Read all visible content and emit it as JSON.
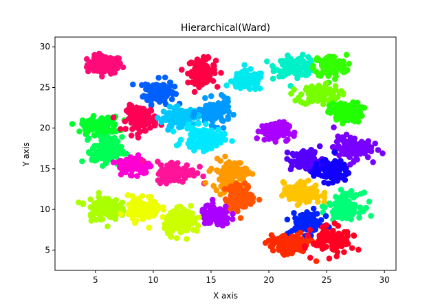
{
  "chart_data": {
    "type": "scatter",
    "title": "Hierarchical(Ward)",
    "xlabel": "X axis",
    "ylabel": "Y axis",
    "xlim": [
      1.5,
      31.0
    ],
    "ylim": [
      2.5,
      31.2
    ],
    "xticks": [
      5,
      10,
      15,
      20,
      25,
      30
    ],
    "yticks": [
      5,
      10,
      15,
      20,
      25,
      30
    ],
    "grid": false,
    "legend": "none",
    "clusters": [
      {
        "center": [
          5.8,
          27.8
        ],
        "spread": [
          0.75,
          0.55
        ],
        "color": "#ff0a79"
      },
      {
        "center": [
          10.5,
          24.5
        ],
        "spread": [
          0.65,
          0.75
        ],
        "color": "#0060ff"
      },
      {
        "center": [
          14.2,
          27.0
        ],
        "spread": [
          0.6,
          0.75
        ],
        "color": "#ff0044"
      },
      {
        "center": [
          18.2,
          25.8
        ],
        "spread": [
          0.7,
          0.6
        ],
        "color": "#00e8f0"
      },
      {
        "center": [
          22.4,
          27.6
        ],
        "spread": [
          0.9,
          0.6
        ],
        "color": "#00f0c8"
      },
      {
        "center": [
          25.3,
          27.6
        ],
        "spread": [
          0.7,
          0.7
        ],
        "color": "#33ff00"
      },
      {
        "center": [
          24.4,
          24.1
        ],
        "spread": [
          0.85,
          0.6
        ],
        "color": "#77ff00"
      },
      {
        "center": [
          26.7,
          21.9
        ],
        "spread": [
          0.7,
          0.6
        ],
        "color": "#22ff00"
      },
      {
        "center": [
          5.4,
          20.3
        ],
        "spread": [
          0.8,
          0.55
        ],
        "color": "#00ff2a"
      },
      {
        "center": [
          9.0,
          21.2
        ],
        "spread": [
          0.65,
          0.75
        ],
        "color": "#ff0055"
      },
      {
        "center": [
          12.3,
          21.4
        ],
        "spread": [
          0.8,
          0.55
        ],
        "color": "#00c8ff"
      },
      {
        "center": [
          15.3,
          21.9
        ],
        "spread": [
          0.7,
          0.75
        ],
        "color": "#0099ff"
      },
      {
        "center": [
          14.3,
          18.7
        ],
        "spread": [
          0.85,
          0.7
        ],
        "color": "#00e8ff"
      },
      {
        "center": [
          20.5,
          19.6
        ],
        "spread": [
          0.6,
          0.55
        ],
        "color": "#aa00ff"
      },
      {
        "center": [
          6.0,
          17.2
        ],
        "spread": [
          0.65,
          0.85
        ],
        "color": "#00ff55"
      },
      {
        "center": [
          8.4,
          15.5
        ],
        "spread": [
          0.7,
          0.55
        ],
        "color": "#ff00d4"
      },
      {
        "center": [
          12.0,
          14.6
        ],
        "spread": [
          0.85,
          0.65
        ],
        "color": "#ff1499"
      },
      {
        "center": [
          16.6,
          14.4
        ],
        "spread": [
          0.75,
          0.85
        ],
        "color": "#ff9900"
      },
      {
        "center": [
          23.3,
          16.0
        ],
        "spread": [
          0.7,
          0.65
        ],
        "color": "#5500ff"
      },
      {
        "center": [
          27.2,
          17.6
        ],
        "spread": [
          0.8,
          0.7
        ],
        "color": "#7700ff"
      },
      {
        "center": [
          25.4,
          14.7
        ],
        "spread": [
          0.75,
          0.65
        ],
        "color": "#1100ff"
      },
      {
        "center": [
          22.9,
          12.0
        ],
        "spread": [
          0.8,
          0.65
        ],
        "color": "#ffc400"
      },
      {
        "center": [
          17.5,
          11.4
        ],
        "spread": [
          0.65,
          0.8
        ],
        "color": "#ff5500"
      },
      {
        "center": [
          5.6,
          10.2
        ],
        "spread": [
          0.7,
          0.75
        ],
        "color": "#aaff00"
      },
      {
        "center": [
          9.2,
          10.1
        ],
        "spread": [
          0.7,
          0.75
        ],
        "color": "#eeff00"
      },
      {
        "center": [
          12.6,
          8.4
        ],
        "spread": [
          0.8,
          0.75
        ],
        "color": "#ccff00"
      },
      {
        "center": [
          15.4,
          9.2
        ],
        "spread": [
          0.65,
          0.6
        ],
        "color": "#aa00ff"
      },
      {
        "center": [
          26.6,
          10.5
        ],
        "spread": [
          0.7,
          0.75
        ],
        "color": "#00ff77"
      },
      {
        "center": [
          23.3,
          8.3
        ],
        "spread": [
          0.7,
          0.65
        ],
        "color": "#0022ff"
      },
      {
        "center": [
          21.8,
          5.6
        ],
        "spread": [
          0.9,
          0.65
        ],
        "color": "#ff2a00"
      },
      {
        "center": [
          25.6,
          6.2
        ],
        "spread": [
          0.9,
          0.8
        ],
        "color": "#ff0022"
      }
    ]
  }
}
